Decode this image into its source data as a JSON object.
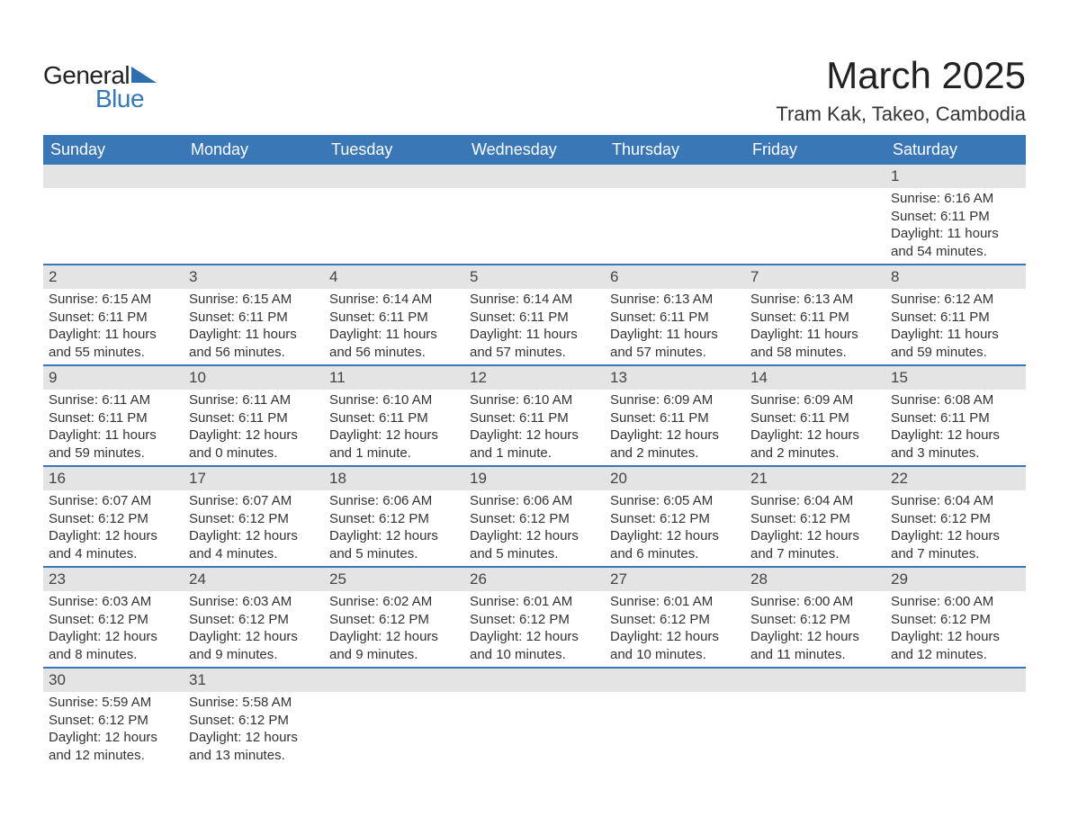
{
  "logo": {
    "word1": "General",
    "word2": "Blue",
    "triangle_color": "#2f6fb0",
    "text_color_general": "#222222",
    "text_color_blue": "#3a77b7"
  },
  "header": {
    "month_title": "March 2025",
    "location": "Tram Kak, Takeo, Cambodia"
  },
  "colors": {
    "header_bg": "#3a77b7",
    "header_text": "#ffffff",
    "daynum_bg": "#e4e4e4",
    "border": "#3a77b7",
    "body_text": "#333333",
    "page_bg": "#ffffff"
  },
  "weekdays": [
    "Sunday",
    "Monday",
    "Tuesday",
    "Wednesday",
    "Thursday",
    "Friday",
    "Saturday"
  ],
  "weeks": [
    [
      {
        "n": "",
        "sunrise": "",
        "sunset": "",
        "daylight": ""
      },
      {
        "n": "",
        "sunrise": "",
        "sunset": "",
        "daylight": ""
      },
      {
        "n": "",
        "sunrise": "",
        "sunset": "",
        "daylight": ""
      },
      {
        "n": "",
        "sunrise": "",
        "sunset": "",
        "daylight": ""
      },
      {
        "n": "",
        "sunrise": "",
        "sunset": "",
        "daylight": ""
      },
      {
        "n": "",
        "sunrise": "",
        "sunset": "",
        "daylight": ""
      },
      {
        "n": "1",
        "sunrise": "Sunrise: 6:16 AM",
        "sunset": "Sunset: 6:11 PM",
        "daylight": "Daylight: 11 hours and 54 minutes."
      }
    ],
    [
      {
        "n": "2",
        "sunrise": "Sunrise: 6:15 AM",
        "sunset": "Sunset: 6:11 PM",
        "daylight": "Daylight: 11 hours and 55 minutes."
      },
      {
        "n": "3",
        "sunrise": "Sunrise: 6:15 AM",
        "sunset": "Sunset: 6:11 PM",
        "daylight": "Daylight: 11 hours and 56 minutes."
      },
      {
        "n": "4",
        "sunrise": "Sunrise: 6:14 AM",
        "sunset": "Sunset: 6:11 PM",
        "daylight": "Daylight: 11 hours and 56 minutes."
      },
      {
        "n": "5",
        "sunrise": "Sunrise: 6:14 AM",
        "sunset": "Sunset: 6:11 PM",
        "daylight": "Daylight: 11 hours and 57 minutes."
      },
      {
        "n": "6",
        "sunrise": "Sunrise: 6:13 AM",
        "sunset": "Sunset: 6:11 PM",
        "daylight": "Daylight: 11 hours and 57 minutes."
      },
      {
        "n": "7",
        "sunrise": "Sunrise: 6:13 AM",
        "sunset": "Sunset: 6:11 PM",
        "daylight": "Daylight: 11 hours and 58 minutes."
      },
      {
        "n": "8",
        "sunrise": "Sunrise: 6:12 AM",
        "sunset": "Sunset: 6:11 PM",
        "daylight": "Daylight: 11 hours and 59 minutes."
      }
    ],
    [
      {
        "n": "9",
        "sunrise": "Sunrise: 6:11 AM",
        "sunset": "Sunset: 6:11 PM",
        "daylight": "Daylight: 11 hours and 59 minutes."
      },
      {
        "n": "10",
        "sunrise": "Sunrise: 6:11 AM",
        "sunset": "Sunset: 6:11 PM",
        "daylight": "Daylight: 12 hours and 0 minutes."
      },
      {
        "n": "11",
        "sunrise": "Sunrise: 6:10 AM",
        "sunset": "Sunset: 6:11 PM",
        "daylight": "Daylight: 12 hours and 1 minute."
      },
      {
        "n": "12",
        "sunrise": "Sunrise: 6:10 AM",
        "sunset": "Sunset: 6:11 PM",
        "daylight": "Daylight: 12 hours and 1 minute."
      },
      {
        "n": "13",
        "sunrise": "Sunrise: 6:09 AM",
        "sunset": "Sunset: 6:11 PM",
        "daylight": "Daylight: 12 hours and 2 minutes."
      },
      {
        "n": "14",
        "sunrise": "Sunrise: 6:09 AM",
        "sunset": "Sunset: 6:11 PM",
        "daylight": "Daylight: 12 hours and 2 minutes."
      },
      {
        "n": "15",
        "sunrise": "Sunrise: 6:08 AM",
        "sunset": "Sunset: 6:11 PM",
        "daylight": "Daylight: 12 hours and 3 minutes."
      }
    ],
    [
      {
        "n": "16",
        "sunrise": "Sunrise: 6:07 AM",
        "sunset": "Sunset: 6:12 PM",
        "daylight": "Daylight: 12 hours and 4 minutes."
      },
      {
        "n": "17",
        "sunrise": "Sunrise: 6:07 AM",
        "sunset": "Sunset: 6:12 PM",
        "daylight": "Daylight: 12 hours and 4 minutes."
      },
      {
        "n": "18",
        "sunrise": "Sunrise: 6:06 AM",
        "sunset": "Sunset: 6:12 PM",
        "daylight": "Daylight: 12 hours and 5 minutes."
      },
      {
        "n": "19",
        "sunrise": "Sunrise: 6:06 AM",
        "sunset": "Sunset: 6:12 PM",
        "daylight": "Daylight: 12 hours and 5 minutes."
      },
      {
        "n": "20",
        "sunrise": "Sunrise: 6:05 AM",
        "sunset": "Sunset: 6:12 PM",
        "daylight": "Daylight: 12 hours and 6 minutes."
      },
      {
        "n": "21",
        "sunrise": "Sunrise: 6:04 AM",
        "sunset": "Sunset: 6:12 PM",
        "daylight": "Daylight: 12 hours and 7 minutes."
      },
      {
        "n": "22",
        "sunrise": "Sunrise: 6:04 AM",
        "sunset": "Sunset: 6:12 PM",
        "daylight": "Daylight: 12 hours and 7 minutes."
      }
    ],
    [
      {
        "n": "23",
        "sunrise": "Sunrise: 6:03 AM",
        "sunset": "Sunset: 6:12 PM",
        "daylight": "Daylight: 12 hours and 8 minutes."
      },
      {
        "n": "24",
        "sunrise": "Sunrise: 6:03 AM",
        "sunset": "Sunset: 6:12 PM",
        "daylight": "Daylight: 12 hours and 9 minutes."
      },
      {
        "n": "25",
        "sunrise": "Sunrise: 6:02 AM",
        "sunset": "Sunset: 6:12 PM",
        "daylight": "Daylight: 12 hours and 9 minutes."
      },
      {
        "n": "26",
        "sunrise": "Sunrise: 6:01 AM",
        "sunset": "Sunset: 6:12 PM",
        "daylight": "Daylight: 12 hours and 10 minutes."
      },
      {
        "n": "27",
        "sunrise": "Sunrise: 6:01 AM",
        "sunset": "Sunset: 6:12 PM",
        "daylight": "Daylight: 12 hours and 10 minutes."
      },
      {
        "n": "28",
        "sunrise": "Sunrise: 6:00 AM",
        "sunset": "Sunset: 6:12 PM",
        "daylight": "Daylight: 12 hours and 11 minutes."
      },
      {
        "n": "29",
        "sunrise": "Sunrise: 6:00 AM",
        "sunset": "Sunset: 6:12 PM",
        "daylight": "Daylight: 12 hours and 12 minutes."
      }
    ],
    [
      {
        "n": "30",
        "sunrise": "Sunrise: 5:59 AM",
        "sunset": "Sunset: 6:12 PM",
        "daylight": "Daylight: 12 hours and 12 minutes."
      },
      {
        "n": "31",
        "sunrise": "Sunrise: 5:58 AM",
        "sunset": "Sunset: 6:12 PM",
        "daylight": "Daylight: 12 hours and 13 minutes."
      },
      {
        "n": "",
        "sunrise": "",
        "sunset": "",
        "daylight": ""
      },
      {
        "n": "",
        "sunrise": "",
        "sunset": "",
        "daylight": ""
      },
      {
        "n": "",
        "sunrise": "",
        "sunset": "",
        "daylight": ""
      },
      {
        "n": "",
        "sunrise": "",
        "sunset": "",
        "daylight": ""
      },
      {
        "n": "",
        "sunrise": "",
        "sunset": "",
        "daylight": ""
      }
    ]
  ]
}
